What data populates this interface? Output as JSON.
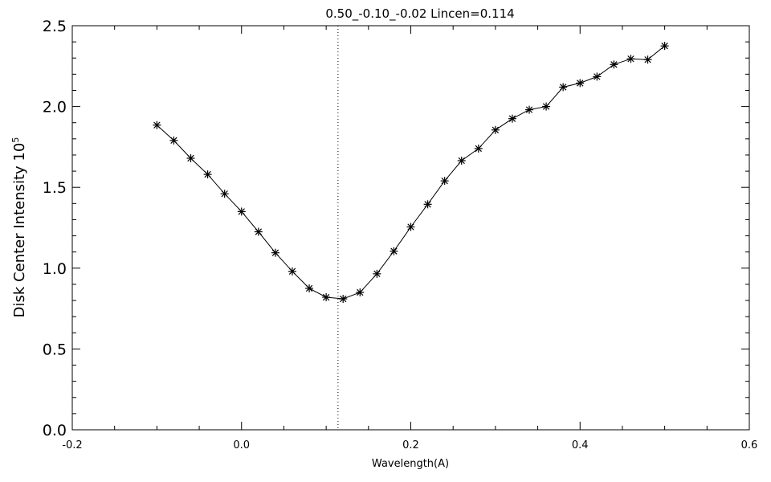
{
  "chart_data": {
    "type": "line",
    "title": "0.50_-0.10_-0.02   Lincen=0.114",
    "xlabel": "Wavelength(A)",
    "ylabel": "Disk Center Intensity 10",
    "ylabel_exponent": "5",
    "xlim": [
      -0.2,
      0.6
    ],
    "ylim": [
      0.0,
      2.5
    ],
    "xticks": [
      -0.2,
      0.0,
      0.2,
      0.4,
      0.6
    ],
    "xtick_labels": [
      "-0.2",
      "0.0",
      "0.2",
      "0.4",
      "0.6"
    ],
    "yticks": [
      0.0,
      0.5,
      1.0,
      1.5,
      2.0,
      2.5
    ],
    "ytick_labels": [
      "0.0",
      "0.5",
      "1.0",
      "1.5",
      "2.0",
      "2.5"
    ],
    "marker": "asterisk",
    "vertical_line": {
      "x": 0.114,
      "style": "dotted"
    },
    "grid": false,
    "series": [
      {
        "x": [
          -0.1,
          -0.08,
          -0.06,
          -0.04,
          -0.02,
          0.0,
          0.02,
          0.04,
          0.06,
          0.08,
          0.1,
          0.12,
          0.14,
          0.16,
          0.18,
          0.2,
          0.22,
          0.24,
          0.26,
          0.28,
          0.3,
          0.32,
          0.34,
          0.36,
          0.38,
          0.4,
          0.42,
          0.44,
          0.46,
          0.48,
          0.5
        ],
        "values": [
          1.885,
          1.79,
          1.68,
          1.58,
          1.46,
          1.35,
          1.225,
          1.095,
          0.98,
          0.875,
          0.82,
          0.81,
          0.85,
          0.965,
          1.105,
          1.255,
          1.395,
          1.54,
          1.665,
          1.74,
          1.855,
          1.925,
          1.98,
          2.0,
          2.12,
          2.145,
          2.185,
          2.26,
          2.295,
          2.29,
          2.375
        ]
      }
    ]
  }
}
